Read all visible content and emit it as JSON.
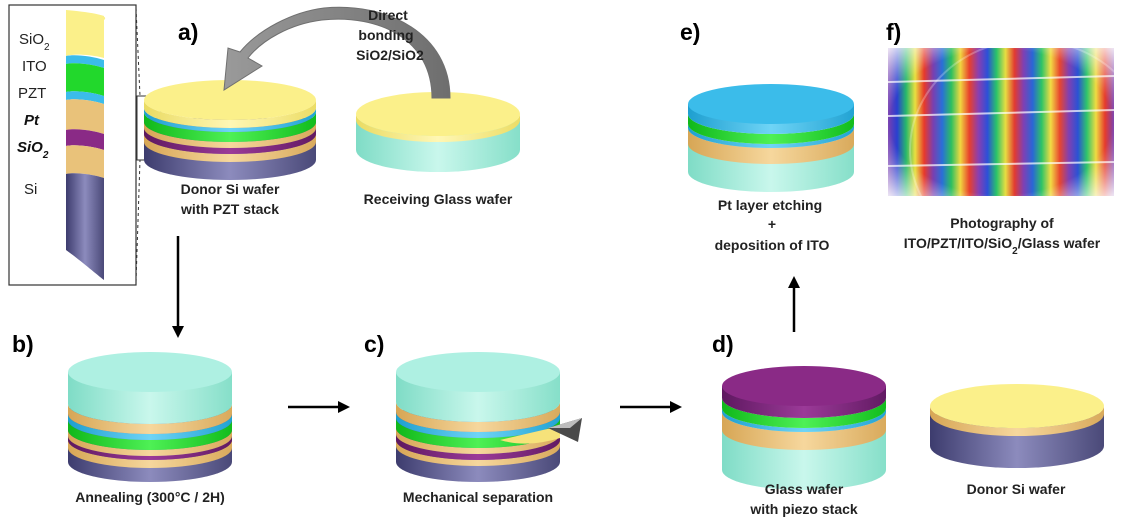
{
  "steps": {
    "a": "a)",
    "b": "b)",
    "c": "c)",
    "d": "d)",
    "e": "e)",
    "f": "f)"
  },
  "inset_layers": [
    {
      "label": "SiO",
      "sub": "2",
      "style": "normal"
    },
    {
      "label": "ITO",
      "sub": "",
      "style": "normal"
    },
    {
      "label": "PZT",
      "sub": "",
      "style": "normal"
    },
    {
      "label": "Pt",
      "sub": "",
      "style": "bold"
    },
    {
      "label": "SiO",
      "sub": "2",
      "style": "bold"
    },
    {
      "label": "Si",
      "sub": "",
      "style": "normal"
    }
  ],
  "labels": {
    "bonding_line1": "Direct",
    "bonding_line2": "bonding",
    "bonding_line3": "SiO2/SiO2",
    "donor_line1": "Donor Si wafer",
    "donor_line2": "with PZT stack",
    "receiving": "Receiving Glass wafer",
    "annealing": "Annealing (300°C / 2H)",
    "separation": "Mechanical  separation",
    "glass_line1": "Glass wafer",
    "glass_line2": "with piezo stack",
    "donor_si": "Donor Si wafer",
    "etch_line1": "Pt layer etching",
    "etch_line2": "+",
    "etch_line3": "deposition of ITO",
    "photo_line1": "Photography of",
    "photo_line2a": "ITO/PZT/ITO/SiO",
    "photo_line2sub": "2",
    "photo_line2b": "/Glass wafer"
  },
  "colors": {
    "yellow": "#fbf08a",
    "cyan_glass": "#aef0e2",
    "blue_ito": "#3bbcea",
    "green_pzt": "#22d82c",
    "tan_sio2": "#e9c27a",
    "purple": "#8a2a86",
    "si": "#5d5c8f"
  }
}
